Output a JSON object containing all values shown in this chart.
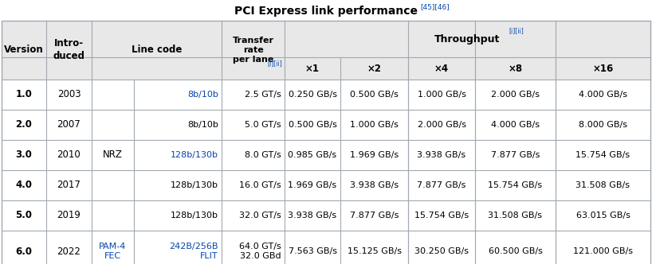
{
  "title": "PCI Express link performance",
  "title_sup": "[45][46]",
  "header_bg": "#e8e8e8",
  "white": "#ffffff",
  "border_color": "#a2a9b1",
  "link_color": "#0645ad",
  "text_color": "#000000",
  "figsize": [
    8.18,
    3.32
  ],
  "dpi": 100,
  "rows": [
    {
      "version": "1.0",
      "year": "2003",
      "mod": "",
      "lc": "8b/10b",
      "lc_blue": true,
      "tr": "2.5 GT/s",
      "x1": "0.250 GB/s",
      "x2": "0.500 GB/s",
      "x4": "1.000 GB/s",
      "x8": "2.000 GB/s",
      "x16": "4.000 GB/s"
    },
    {
      "version": "2.0",
      "year": "2007",
      "mod": "",
      "lc": "8b/10b",
      "lc_blue": false,
      "tr": "5.0 GT/s",
      "x1": "0.500 GB/s",
      "x2": "1.000 GB/s",
      "x4": "2.000 GB/s",
      "x8": "4.000 GB/s",
      "x16": "8.000 GB/s"
    },
    {
      "version": "3.0",
      "year": "2010",
      "mod": "NRZ",
      "lc": "128b/130b",
      "lc_blue": true,
      "tr": "8.0 GT/s",
      "x1": "0.985 GB/s",
      "x2": "1.969 GB/s",
      "x4": "3.938 GB/s",
      "x8": "7.877 GB/s",
      "x16": "15.754 GB/s"
    },
    {
      "version": "4.0",
      "year": "2017",
      "mod": "",
      "lc": "128b/130b",
      "lc_blue": false,
      "tr": "16.0 GT/s",
      "x1": "1.969 GB/s",
      "x2": "3.938 GB/s",
      "x4": "7.877 GB/s",
      "x8": "15.754 GB/s",
      "x16": "31.508 GB/s"
    },
    {
      "version": "5.0",
      "year": "2019",
      "mod": "",
      "lc": "128b/130b",
      "lc_blue": false,
      "tr": "32.0 GT/s",
      "x1": "3.938 GB/s",
      "x2": "7.877 GB/s",
      "x4": "15.754 GB/s",
      "x8": "31.508 GB/s",
      "x16": "63.015 GB/s"
    },
    {
      "version": "6.0",
      "year": "2022",
      "mod": "PAM-4\nFEC",
      "lc": "242B/256B\nFLIT",
      "lc_blue": true,
      "tr": "64.0 GT/s\n32.0 GBd",
      "x1": "7.563 GB/s",
      "x2": "15.125 GB/s",
      "x4": "30.250 GB/s",
      "x8": "60.500 GB/s",
      "x16": "121.000 GB/s"
    }
  ]
}
